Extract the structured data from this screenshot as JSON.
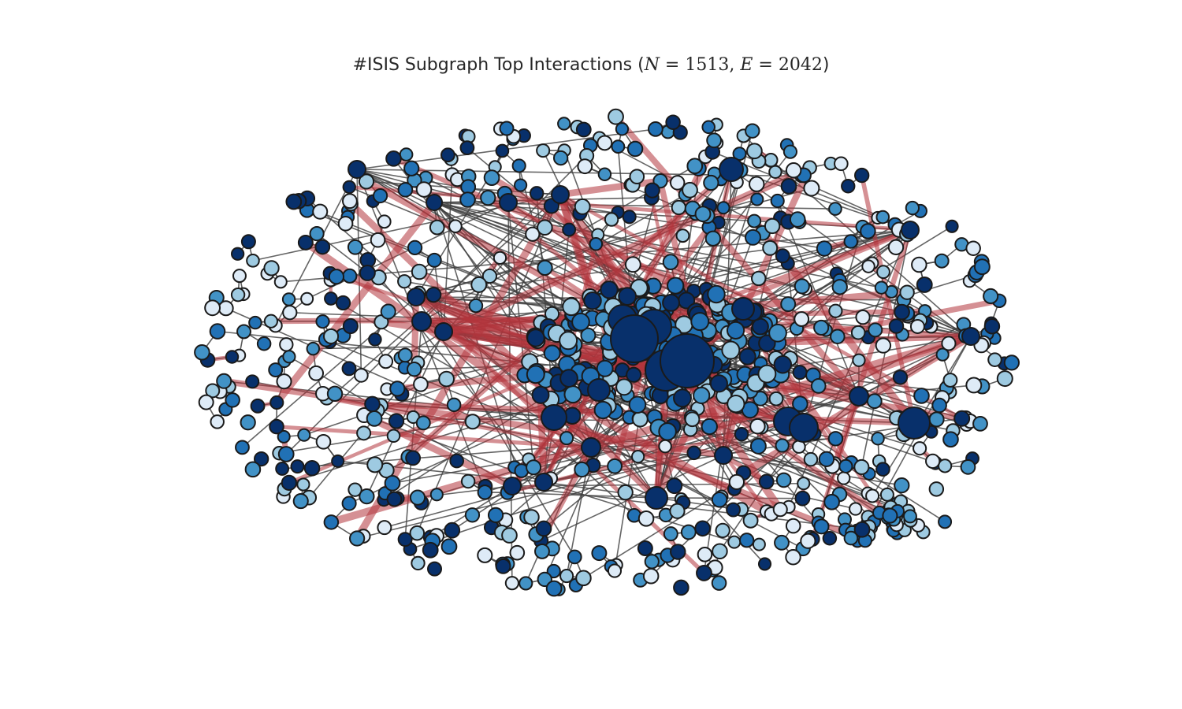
{
  "figure": {
    "title_prefix": "#ISIS Subgraph Top Interactions (",
    "n_symbol": "N",
    "n_value": "1513",
    "e_symbol": "E",
    "e_value": "2042",
    "title_suffix": ")"
  },
  "graph": {
    "node_count": 1513,
    "edge_count": 2042,
    "colors": {
      "node_fill_scale": [
        "#deebf7",
        "#9ecae1",
        "#4292c6",
        "#2171b5",
        "#08306b"
      ],
      "node_outline": "#1a1a1a",
      "edge_default": "#3f3f3f",
      "edge_top_interaction": "#b2343d"
    }
  }
}
